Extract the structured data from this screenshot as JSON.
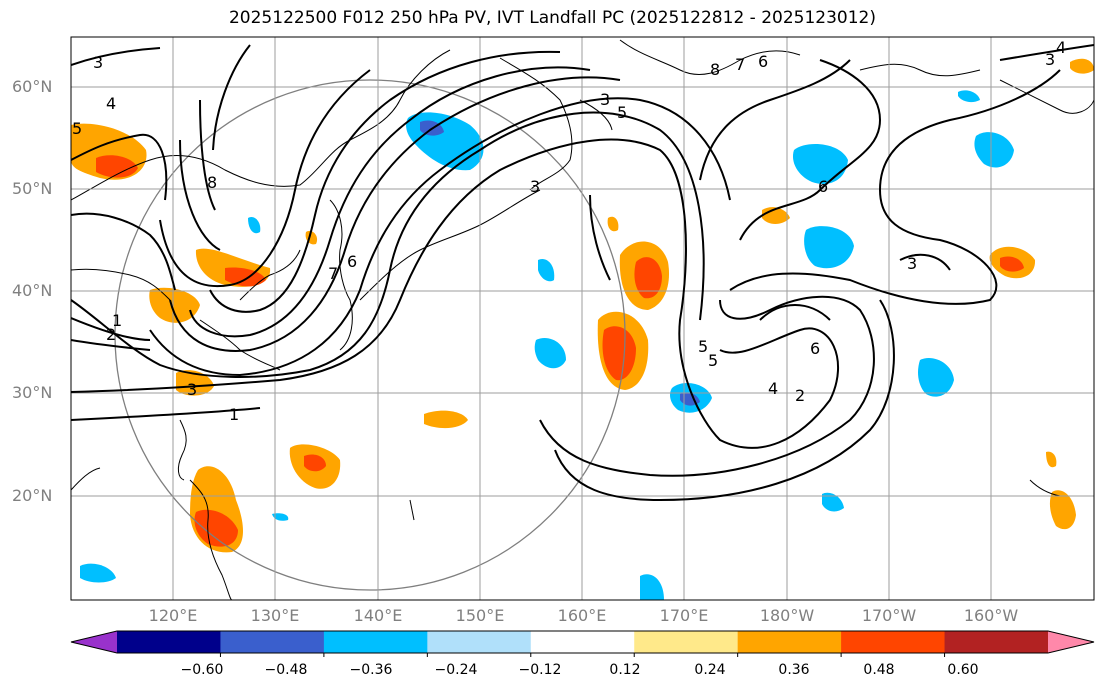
{
  "title": "2025122500 F012 250 hPa PV, IVT Landfall PC (2025122812 - 2025123012)",
  "lat_labels": [
    "60°N",
    "50°N",
    "40°N",
    "30°N",
    "20°N"
  ],
  "lon_labels": [
    "120°E",
    "130°E",
    "140°E",
    "150°E",
    "160°E",
    "170°E",
    "180°W",
    "170°W",
    "160°W"
  ],
  "colorbar": {
    "labels": [
      "−0.60",
      "−0.48",
      "−0.36",
      "−0.24",
      "−0.12",
      "0.12",
      "0.24",
      "0.36",
      "0.48",
      "0.60"
    ],
    "colors": [
      "#9932cc",
      "#00008b",
      "#3a5fcd",
      "#00bfff",
      "#b0e0fa",
      "#ffffff",
      "#ffe98a",
      "#ffa500",
      "#ff4500",
      "#b22222",
      "#ff88aa"
    ]
  },
  "contour_labels": [
    "3",
    "4",
    "5",
    "8",
    "1",
    "2",
    "3",
    "7",
    "6",
    "8",
    "7",
    "6",
    "5",
    "3",
    "3",
    "1",
    "5",
    "5",
    "6",
    "6",
    "4",
    "2",
    "3",
    "3",
    "4"
  ],
  "colors": {
    "contour": "#000000",
    "grid": "#9e9e9e",
    "coast": "#000000",
    "circle": "#7f7f7f"
  }
}
